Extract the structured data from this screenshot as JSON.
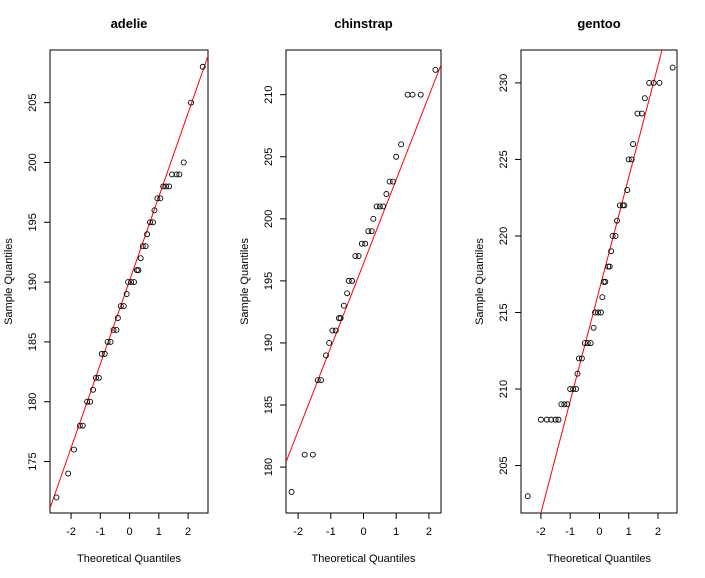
{
  "chart_data": [
    {
      "type": "scatter",
      "title": "adelie",
      "xlabel": "Theoretical Quantiles",
      "ylabel": "Sample Quantiles",
      "xlim": [
        -2.72,
        2.68
      ],
      "ylim": [
        170.7,
        209.4
      ],
      "xticks": [
        -2,
        -1,
        0,
        1,
        2
      ],
      "yticks": [
        175,
        180,
        185,
        190,
        195,
        200,
        205
      ],
      "x": [
        -2.5,
        -2.1,
        -1.9,
        -1.7,
        -1.6,
        -1.45,
        -1.35,
        -1.25,
        -1.15,
        -1.05,
        -0.95,
        -0.85,
        -0.75,
        -0.65,
        -0.55,
        -0.45,
        -0.4,
        -0.3,
        -0.2,
        -0.1,
        -0.05,
        0.05,
        0.15,
        0.25,
        0.3,
        0.38,
        0.45,
        0.55,
        0.6,
        0.7,
        0.8,
        0.85,
        0.95,
        1.05,
        1.15,
        1.25,
        1.35,
        1.45,
        1.6,
        1.7,
        1.85,
        2.1,
        2.5
      ],
      "y": [
        172,
        174,
        176,
        178,
        178,
        180,
        180,
        181,
        182,
        182,
        184,
        184,
        185,
        185,
        186,
        186,
        187,
        188,
        188,
        189,
        190,
        190,
        190,
        191,
        191,
        192,
        193,
        193,
        194,
        195,
        195,
        196,
        197,
        197,
        198,
        198,
        198,
        199,
        199,
        199,
        200,
        205,
        208
      ],
      "qqline": {
        "color": "#ff0000",
        "x": [
          -2.72,
          2.68
        ],
        "y": [
          171.1,
          208.9
        ]
      }
    },
    {
      "type": "scatter",
      "title": "chinstrap",
      "xlabel": "Theoretical Quantiles",
      "ylabel": "Sample Quantiles",
      "xlim": [
        -2.37,
        2.37
      ],
      "ylim": [
        176.3,
        213.6
      ],
      "xticks": [
        -2,
        -1,
        0,
        1,
        2
      ],
      "yticks": [
        180,
        185,
        190,
        195,
        200,
        205,
        210
      ],
      "x": [
        -2.2,
        -1.8,
        -1.55,
        -1.4,
        -1.3,
        -1.15,
        -1.05,
        -0.95,
        -0.85,
        -0.75,
        -0.7,
        -0.6,
        -0.5,
        -0.45,
        -0.35,
        -0.25,
        -0.15,
        -0.05,
        0.05,
        0.15,
        0.25,
        0.3,
        0.4,
        0.5,
        0.6,
        0.7,
        0.8,
        0.9,
        1.0,
        1.15,
        1.35,
        1.5,
        1.75,
        2.2
      ],
      "y": [
        178,
        181,
        181,
        187,
        187,
        189,
        190,
        191,
        191,
        192,
        192,
        193,
        194,
        195,
        195,
        197,
        197,
        198,
        198,
        199,
        199,
        200,
        201,
        201,
        201,
        202,
        203,
        203,
        205,
        206,
        210,
        210,
        210,
        212
      ],
      "qqline": {
        "color": "#ff0000",
        "x": [
          -2.37,
          2.37
        ],
        "y": [
          180.4,
          212.4
        ]
      }
    },
    {
      "type": "scatter",
      "title": "gentoo",
      "xlabel": "Theoretical Quantiles",
      "ylabel": "Sample Quantiles",
      "xlim": [
        -2.68,
        2.65
      ],
      "ylim": [
        201.9,
        232.15
      ],
      "xticks": [
        -2,
        -1,
        0,
        1,
        2
      ],
      "yticks": [
        205,
        210,
        215,
        220,
        225,
        230
      ],
      "x": [
        -2.45,
        -2.0,
        -1.8,
        -1.65,
        -1.5,
        -1.4,
        -1.3,
        -1.2,
        -1.1,
        -1.0,
        -0.9,
        -0.8,
        -0.75,
        -0.7,
        -0.6,
        -0.5,
        -0.4,
        -0.3,
        -0.2,
        -0.15,
        -0.05,
        0.05,
        0.1,
        0.15,
        0.2,
        0.3,
        0.35,
        0.4,
        0.45,
        0.55,
        0.6,
        0.7,
        0.8,
        0.85,
        0.95,
        1.0,
        1.1,
        1.15,
        1.3,
        1.45,
        1.55,
        1.7,
        1.85,
        2.05,
        2.5
      ],
      "y": [
        203,
        208,
        208,
        208,
        208,
        208,
        209,
        209,
        209,
        210,
        210,
        210,
        211,
        212,
        212,
        213,
        213,
        213,
        214,
        215,
        215,
        215,
        216,
        217,
        217,
        218,
        218,
        219,
        220,
        220,
        221,
        222,
        222,
        222,
        223,
        225,
        225,
        226,
        228,
        228,
        229,
        230,
        230,
        230,
        231
      ],
      "qqline": {
        "color": "#ff0000",
        "x": [
          -2.0,
          2.14
        ],
        "y": [
          201.9,
          232.15
        ]
      }
    }
  ]
}
